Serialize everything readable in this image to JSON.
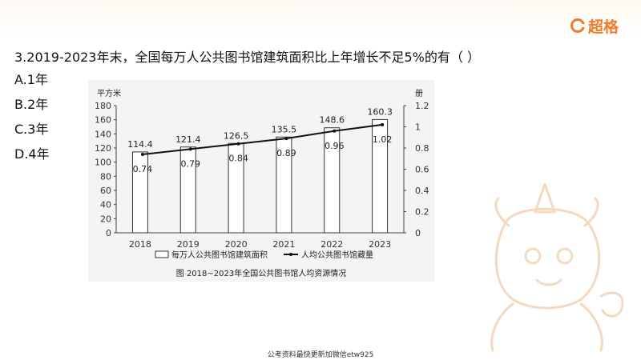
{
  "header": {
    "brand": "超格"
  },
  "question": {
    "text": "3.2019-2023年末，全国每万人公共图书馆建筑面积比上年增长不足5%的有（   ）",
    "options": [
      "A.1年",
      "B.2年",
      "C.3年",
      "D.4年"
    ]
  },
  "footer": {
    "text": "公考资料最快更新加微信etw925"
  },
  "chart_data": {
    "type": "bar",
    "title": "图  2018~2023年全国公共图书馆人均资源情况",
    "categories": [
      "2018",
      "2019",
      "2020",
      "2021",
      "2022",
      "2023"
    ],
    "ylabel_left": "平方米",
    "ylabel_right": "册",
    "ylim_left": [
      0,
      180
    ],
    "ylim_right": [
      0,
      1.2
    ],
    "yticks_left": [
      "0",
      "20",
      "40",
      "60",
      "80",
      "100",
      "120",
      "140",
      "160",
      "180"
    ],
    "yticks_right": [
      "0",
      "0.2",
      "0.4",
      "0.6",
      "0.8",
      "1",
      "1.2"
    ],
    "grid": false,
    "legend_position": "bottom",
    "series": [
      {
        "name": "每万人公共图书馆建筑面积",
        "kind": "bar",
        "axis": "left",
        "values": [
          114.4,
          121.4,
          126.5,
          135.5,
          148.6,
          160.3
        ],
        "labels": [
          "114.4",
          "121.4",
          "126.5",
          "135.5",
          "148.6",
          "160.3"
        ]
      },
      {
        "name": "人均公共图书馆藏量",
        "kind": "line",
        "axis": "right",
        "values": [
          0.74,
          0.79,
          0.84,
          0.89,
          0.96,
          1.02
        ],
        "labels": [
          "0.74",
          "0.79",
          "0.84",
          "0.89",
          "0.96",
          "1.02"
        ]
      }
    ],
    "colors": {
      "bar_fill": "#ffffff",
      "bar_stroke": "#333333",
      "line": "#111111",
      "panel": "#f4f4f4"
    }
  }
}
